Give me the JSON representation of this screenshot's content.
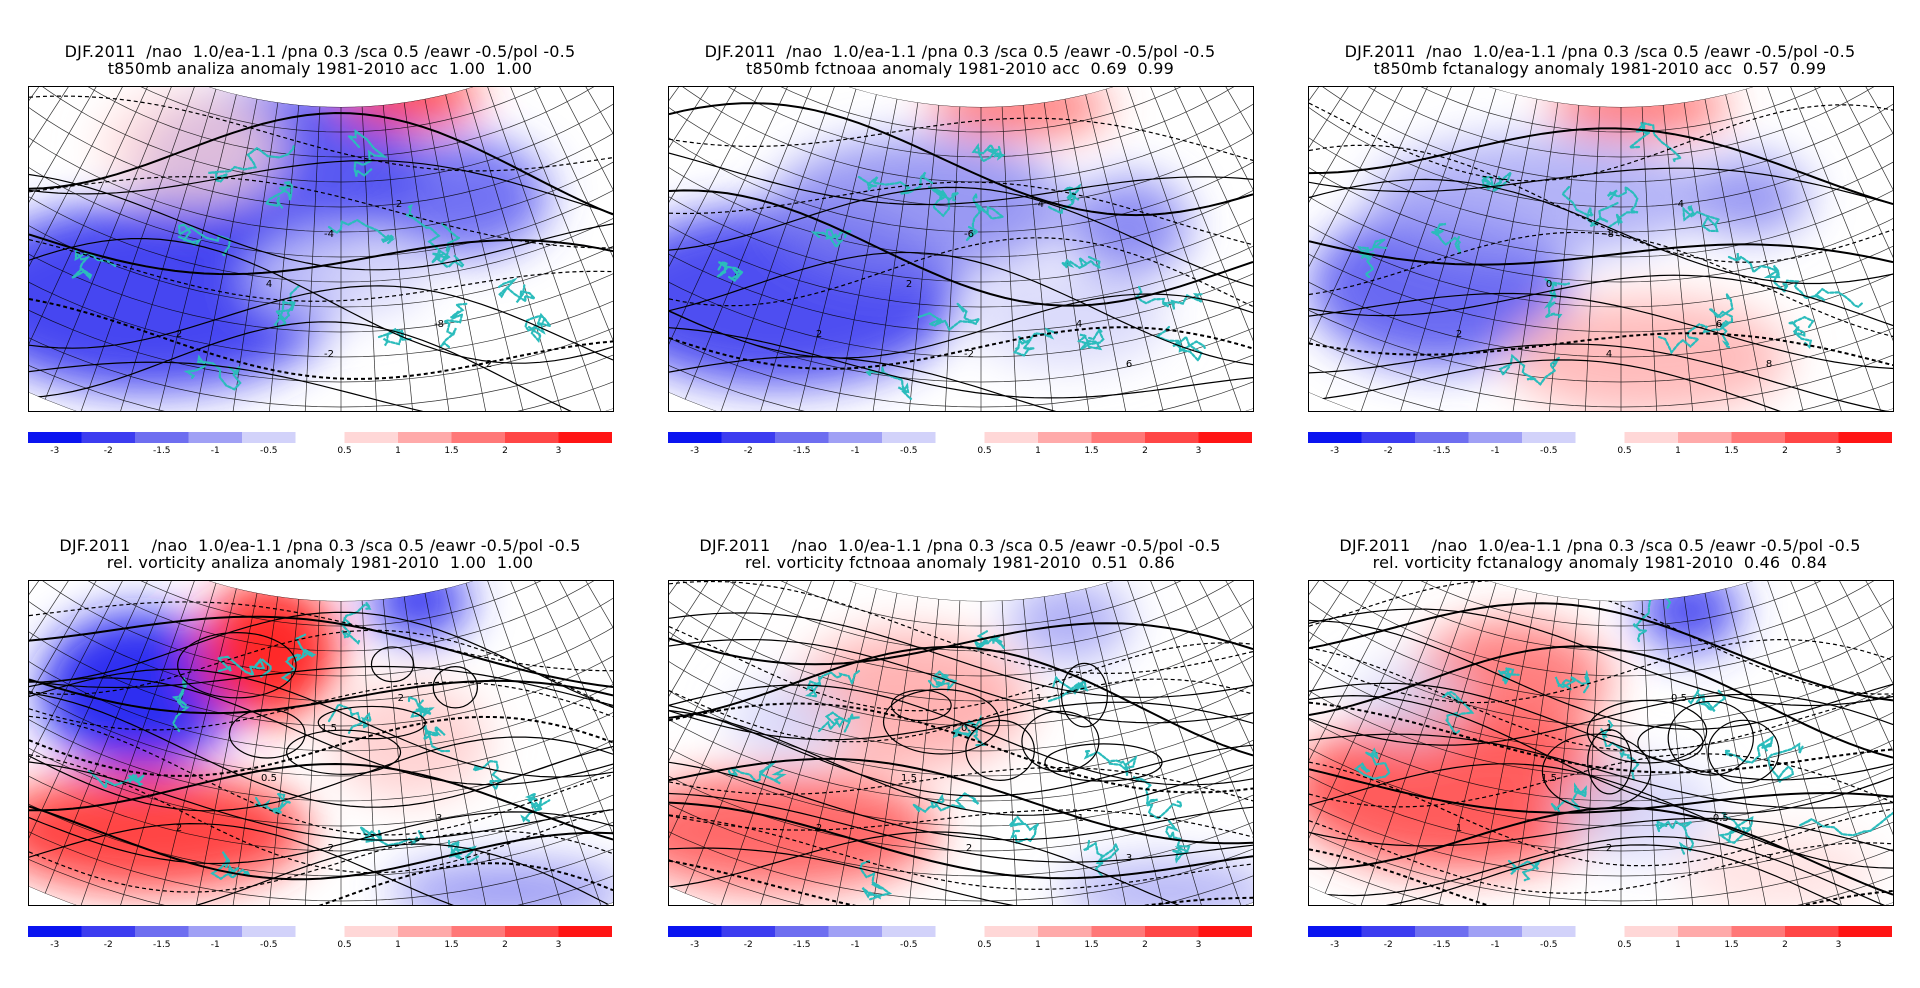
{
  "panels": [
    {
      "title_line1": "DJF.2011  /nao  1.0/ea-1.1 /pna 0.3 /sca 0.5 /eawr -0.5/pol -0.5",
      "title_line2": "t850mb analiza anomaly 1981-2010 acc  1.00  1.00",
      "variable": "t850",
      "contour_labels": [
        "-4",
        "2",
        "4",
        "-2",
        "-8",
        "2",
        "2"
      ]
    },
    {
      "title_line1": "DJF.2011  /nao  1.0/ea-1.1 /pna 0.3 /sca 0.5 /eawr -0.5/pol -0.5",
      "title_line2": "t850mb fctnoaa anomaly 1981-2010 acc  0.69  0.99",
      "variable": "t850",
      "contour_labels": [
        "-6",
        "-4",
        "2",
        "-2",
        "4",
        "6",
        "2"
      ]
    },
    {
      "title_line1": "DJF.2011  /nao  1.0/ea-1.1 /pna 0.3 /sca 0.5 /eawr -0.5/pol -0.5",
      "title_line2": "t850mb fctanalogy anomaly 1981-2010 acc  0.57  0.99",
      "variable": "t850",
      "contour_labels": [
        "-8",
        "-4",
        "0",
        "4",
        "6",
        "8",
        "2"
      ]
    },
    {
      "title_line1": "DJF.2011    /nao  1.0/ea-1.1 /pna 0.3 /sca 0.5 /eawr -0.5/pol -0.5",
      "title_line2": "rel. vorticity analiza anomaly 1981-2010  1.00  1.00",
      "variable": "vort",
      "contour_labels": [
        "1.5",
        "-2",
        "0.5",
        "-2",
        "3",
        "1",
        "2"
      ]
    },
    {
      "title_line1": "DJF.2011    /nao  1.0/ea-1.1 /pna 0.3 /sca 0.5 /eawr -0.5/pol -0.5",
      "title_line2": "rel. vorticity fctnoaa anomaly 1981-2010  0.51  0.86",
      "variable": "vort",
      "contour_labels": [
        "0.5",
        "1",
        "1.5",
        "2",
        "-1",
        "3",
        "2"
      ]
    },
    {
      "title_line1": "DJF.2011    /nao  1.0/ea-1.1 /pna 0.3 /sca 0.5 /eawr -0.5/pol -0.5",
      "title_line2": "rel. vorticity fctanalogy anomaly 1981-2010  0.46  0.84",
      "variable": "vort",
      "contour_labels": [
        "1",
        "0.5",
        "1.5",
        "2",
        "-0.5",
        "3",
        "1"
      ]
    }
  ],
  "colorbar": {
    "labels": [
      "-3",
      "-2",
      "-1.5",
      "-1",
      "-0.5",
      "0.5",
      "1",
      "1.5",
      "2",
      "3"
    ],
    "colors": [
      "#0a14f0",
      "#3c3cf0",
      "#6e6ef0",
      "#a0a0f5",
      "#d2d2fa",
      "#ffd7d7",
      "#ffaaaa",
      "#ff7878",
      "#ff4646",
      "#ff1414"
    ]
  },
  "colors": {
    "coast": "#2bbcbc",
    "grid": "#000000",
    "neg": "#3c3cf0",
    "pos": "#ff3c3c"
  }
}
